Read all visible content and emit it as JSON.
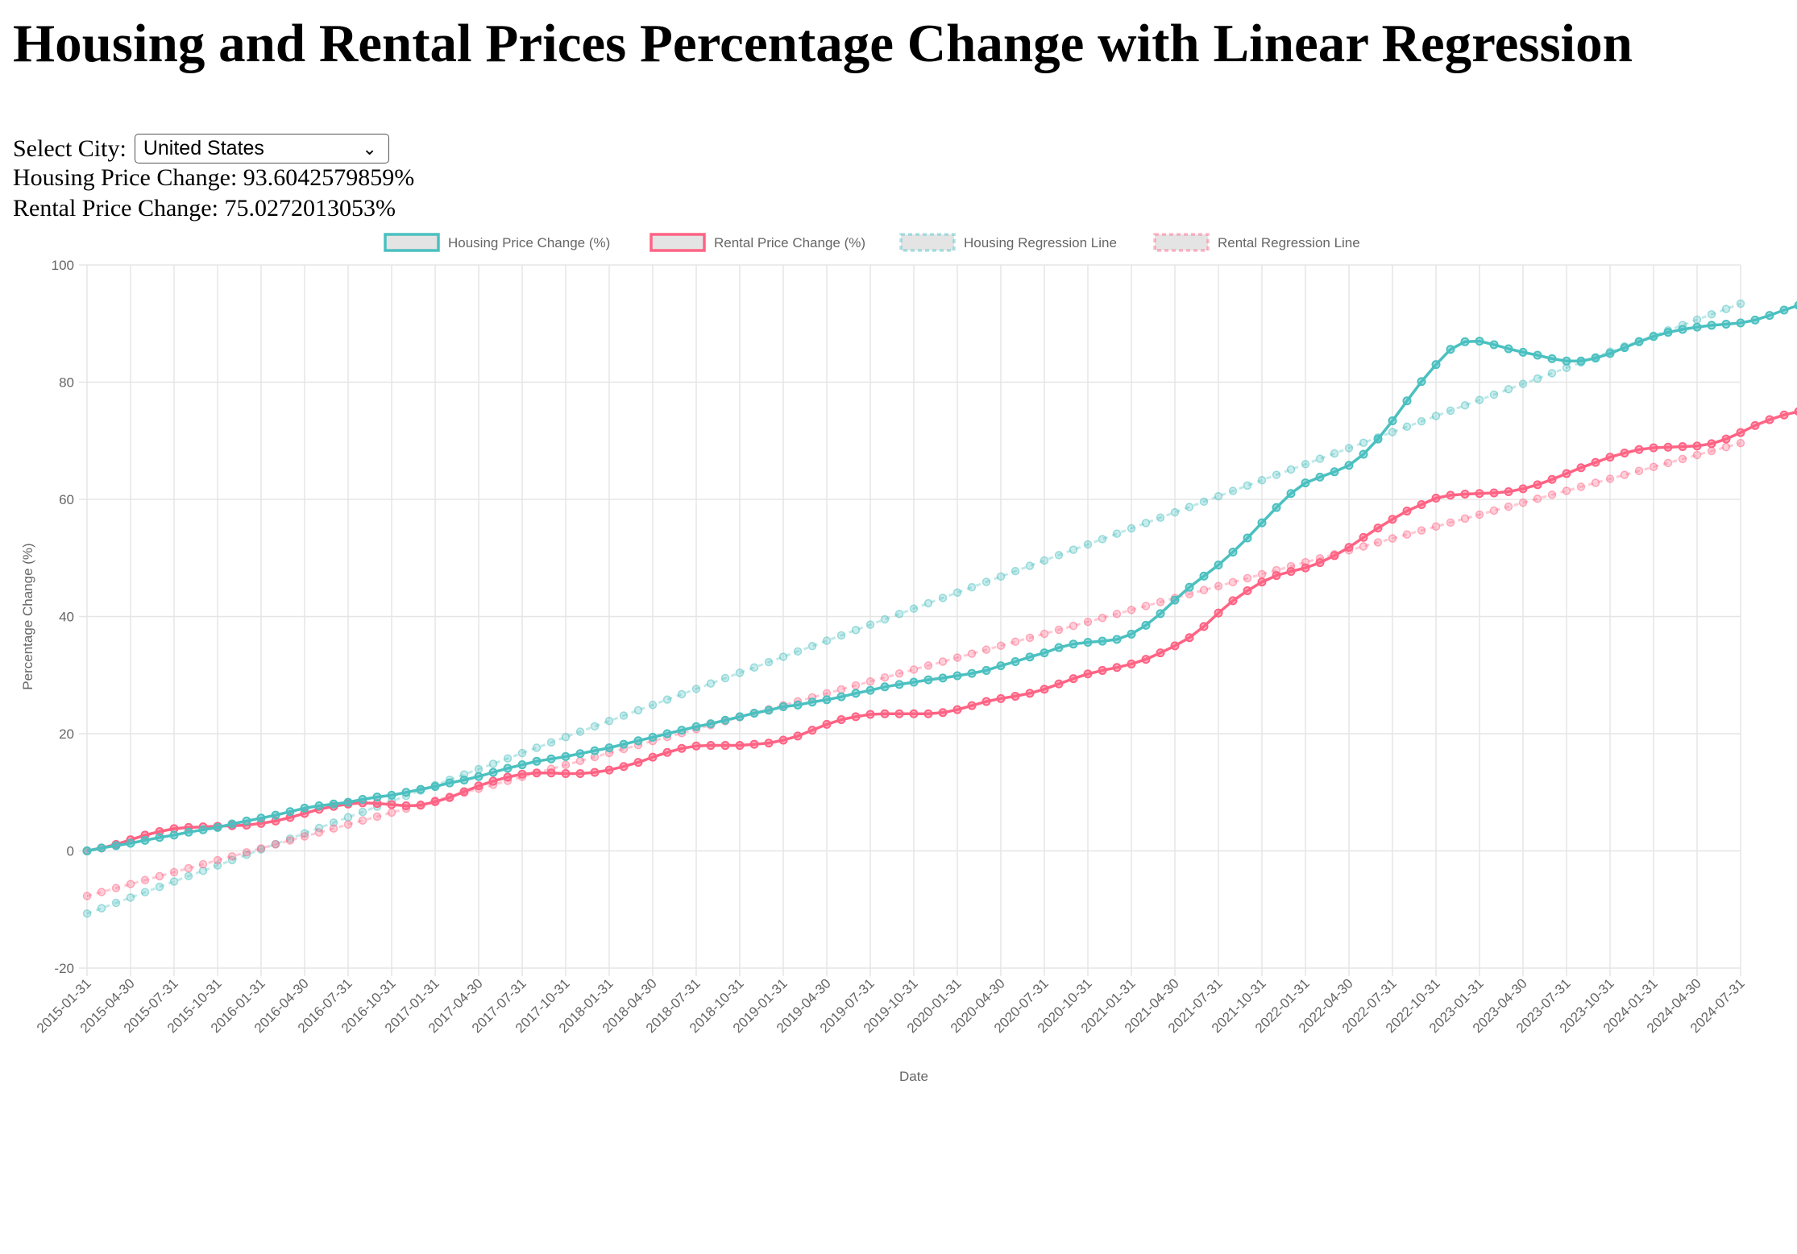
{
  "page": {
    "title": "Housing and Rental Prices Percentage Change with Linear Regression",
    "city_label": "Select City:",
    "city_selected": "United States",
    "housing_change_label": "Housing Price Change:",
    "housing_change_value": "93.6042579859%",
    "rental_change_label": "Rental Price Change:",
    "rental_change_value": "75.0272013053%"
  },
  "chart_data": {
    "type": "line",
    "xlabel": "Date",
    "ylabel": "Percentage Change (%)",
    "ylim": [
      -20,
      100
    ],
    "yticks": [
      -20,
      0,
      20,
      40,
      60,
      80,
      100
    ],
    "grid": true,
    "legend_position": "top-center",
    "start_date": "2015-01-31",
    "x_tick_labels": [
      "2015-01-31",
      "2015-04-30",
      "2015-07-31",
      "2015-10-31",
      "2016-01-31",
      "2016-04-30",
      "2016-07-31",
      "2016-10-31",
      "2017-01-31",
      "2017-04-30",
      "2017-07-31",
      "2017-10-31",
      "2018-01-31",
      "2018-04-30",
      "2018-07-31",
      "2018-10-31",
      "2019-01-31",
      "2019-04-30",
      "2019-07-31",
      "2019-10-31",
      "2020-01-31",
      "2020-04-30",
      "2020-07-31",
      "2020-10-31",
      "2021-01-31",
      "2021-04-30",
      "2021-07-31",
      "2021-10-31",
      "2022-01-31",
      "2022-04-30",
      "2022-07-31",
      "2022-10-31",
      "2023-01-31",
      "2023-04-30",
      "2023-07-31",
      "2023-10-31",
      "2024-01-31",
      "2024-04-30",
      "2024-07-31"
    ],
    "series": [
      {
        "name": "Housing Price Change (%)",
        "color": "#4bc0c0",
        "dashed": false,
        "values": [
          0.0,
          0.5,
          0.9,
          1.3,
          1.8,
          2.3,
          2.7,
          3.2,
          3.6,
          4.0,
          4.6,
          5.1,
          5.6,
          6.1,
          6.7,
          7.3,
          7.7,
          8.0,
          8.3,
          8.8,
          9.2,
          9.5,
          10.0,
          10.5,
          11.0,
          11.6,
          12.1,
          12.7,
          13.4,
          14.1,
          14.7,
          15.3,
          15.7,
          16.1,
          16.6,
          17.1,
          17.6,
          18.2,
          18.8,
          19.4,
          20.0,
          20.6,
          21.2,
          21.7,
          22.3,
          22.9,
          23.5,
          24.0,
          24.6,
          24.9,
          25.4,
          25.8,
          26.3,
          26.9,
          27.4,
          28.0,
          28.4,
          28.8,
          29.2,
          29.5,
          29.9,
          30.3,
          30.8,
          31.6,
          32.3,
          33.1,
          33.8,
          34.7,
          35.3,
          35.6,
          35.8,
          36.1,
          37.0,
          38.5,
          40.5,
          42.8,
          45.0,
          46.9,
          48.8,
          51.0,
          53.4,
          56.0,
          58.6,
          61.0,
          62.8,
          63.8,
          64.7,
          65.8,
          67.7,
          70.3,
          73.4,
          76.8,
          80.1,
          83.0,
          85.6,
          86.9,
          87.0,
          86.4,
          85.7,
          85.1,
          84.6,
          84.0,
          83.6,
          83.6,
          84.1,
          84.9,
          85.9,
          86.9,
          87.8,
          88.5,
          89.0,
          89.4,
          89.7,
          89.9,
          90.1,
          90.6,
          91.4,
          92.3,
          93.1,
          93.5,
          93.6
        ]
      },
      {
        "name": "Rental Price Change (%)",
        "color": "#ff6384",
        "dashed": false,
        "values": [
          0.0,
          0.5,
          1.1,
          1.9,
          2.7,
          3.3,
          3.8,
          4.0,
          4.1,
          4.2,
          4.3,
          4.4,
          4.7,
          5.1,
          5.7,
          6.4,
          7.1,
          7.6,
          8.0,
          8.2,
          8.1,
          7.9,
          7.7,
          7.8,
          8.4,
          9.1,
          10.1,
          11.1,
          11.9,
          12.6,
          13.1,
          13.3,
          13.3,
          13.2,
          13.2,
          13.4,
          13.8,
          14.4,
          15.1,
          16.0,
          16.8,
          17.5,
          17.9,
          18.0,
          18.0,
          18.0,
          18.2,
          18.4,
          18.9,
          19.6,
          20.6,
          21.6,
          22.4,
          22.9,
          23.3,
          23.4,
          23.4,
          23.4,
          23.4,
          23.6,
          24.1,
          24.8,
          25.5,
          26.0,
          26.4,
          26.9,
          27.6,
          28.5,
          29.4,
          30.2,
          30.8,
          31.3,
          31.9,
          32.7,
          33.8,
          35.0,
          36.4,
          38.3,
          40.6,
          42.7,
          44.4,
          45.9,
          47.0,
          47.7,
          48.3,
          49.2,
          50.4,
          51.8,
          53.5,
          55.1,
          56.6,
          58.0,
          59.1,
          60.2,
          60.7,
          60.9,
          61.0,
          61.1,
          61.3,
          61.8,
          62.5,
          63.4,
          64.4,
          65.4,
          66.3,
          67.2,
          67.9,
          68.5,
          68.8,
          68.9,
          69.0,
          69.1,
          69.5,
          70.3,
          71.4,
          72.6,
          73.6,
          74.4,
          75.0
        ]
      },
      {
        "name": "Housing Regression Line",
        "color": "#4bc0c0",
        "dashed": true,
        "linear": [
          -10.7,
          93.4
        ]
      },
      {
        "name": "Rental Regression Line",
        "color": "#ff6384",
        "dashed": true,
        "linear": [
          -7.7,
          69.6
        ]
      }
    ]
  }
}
